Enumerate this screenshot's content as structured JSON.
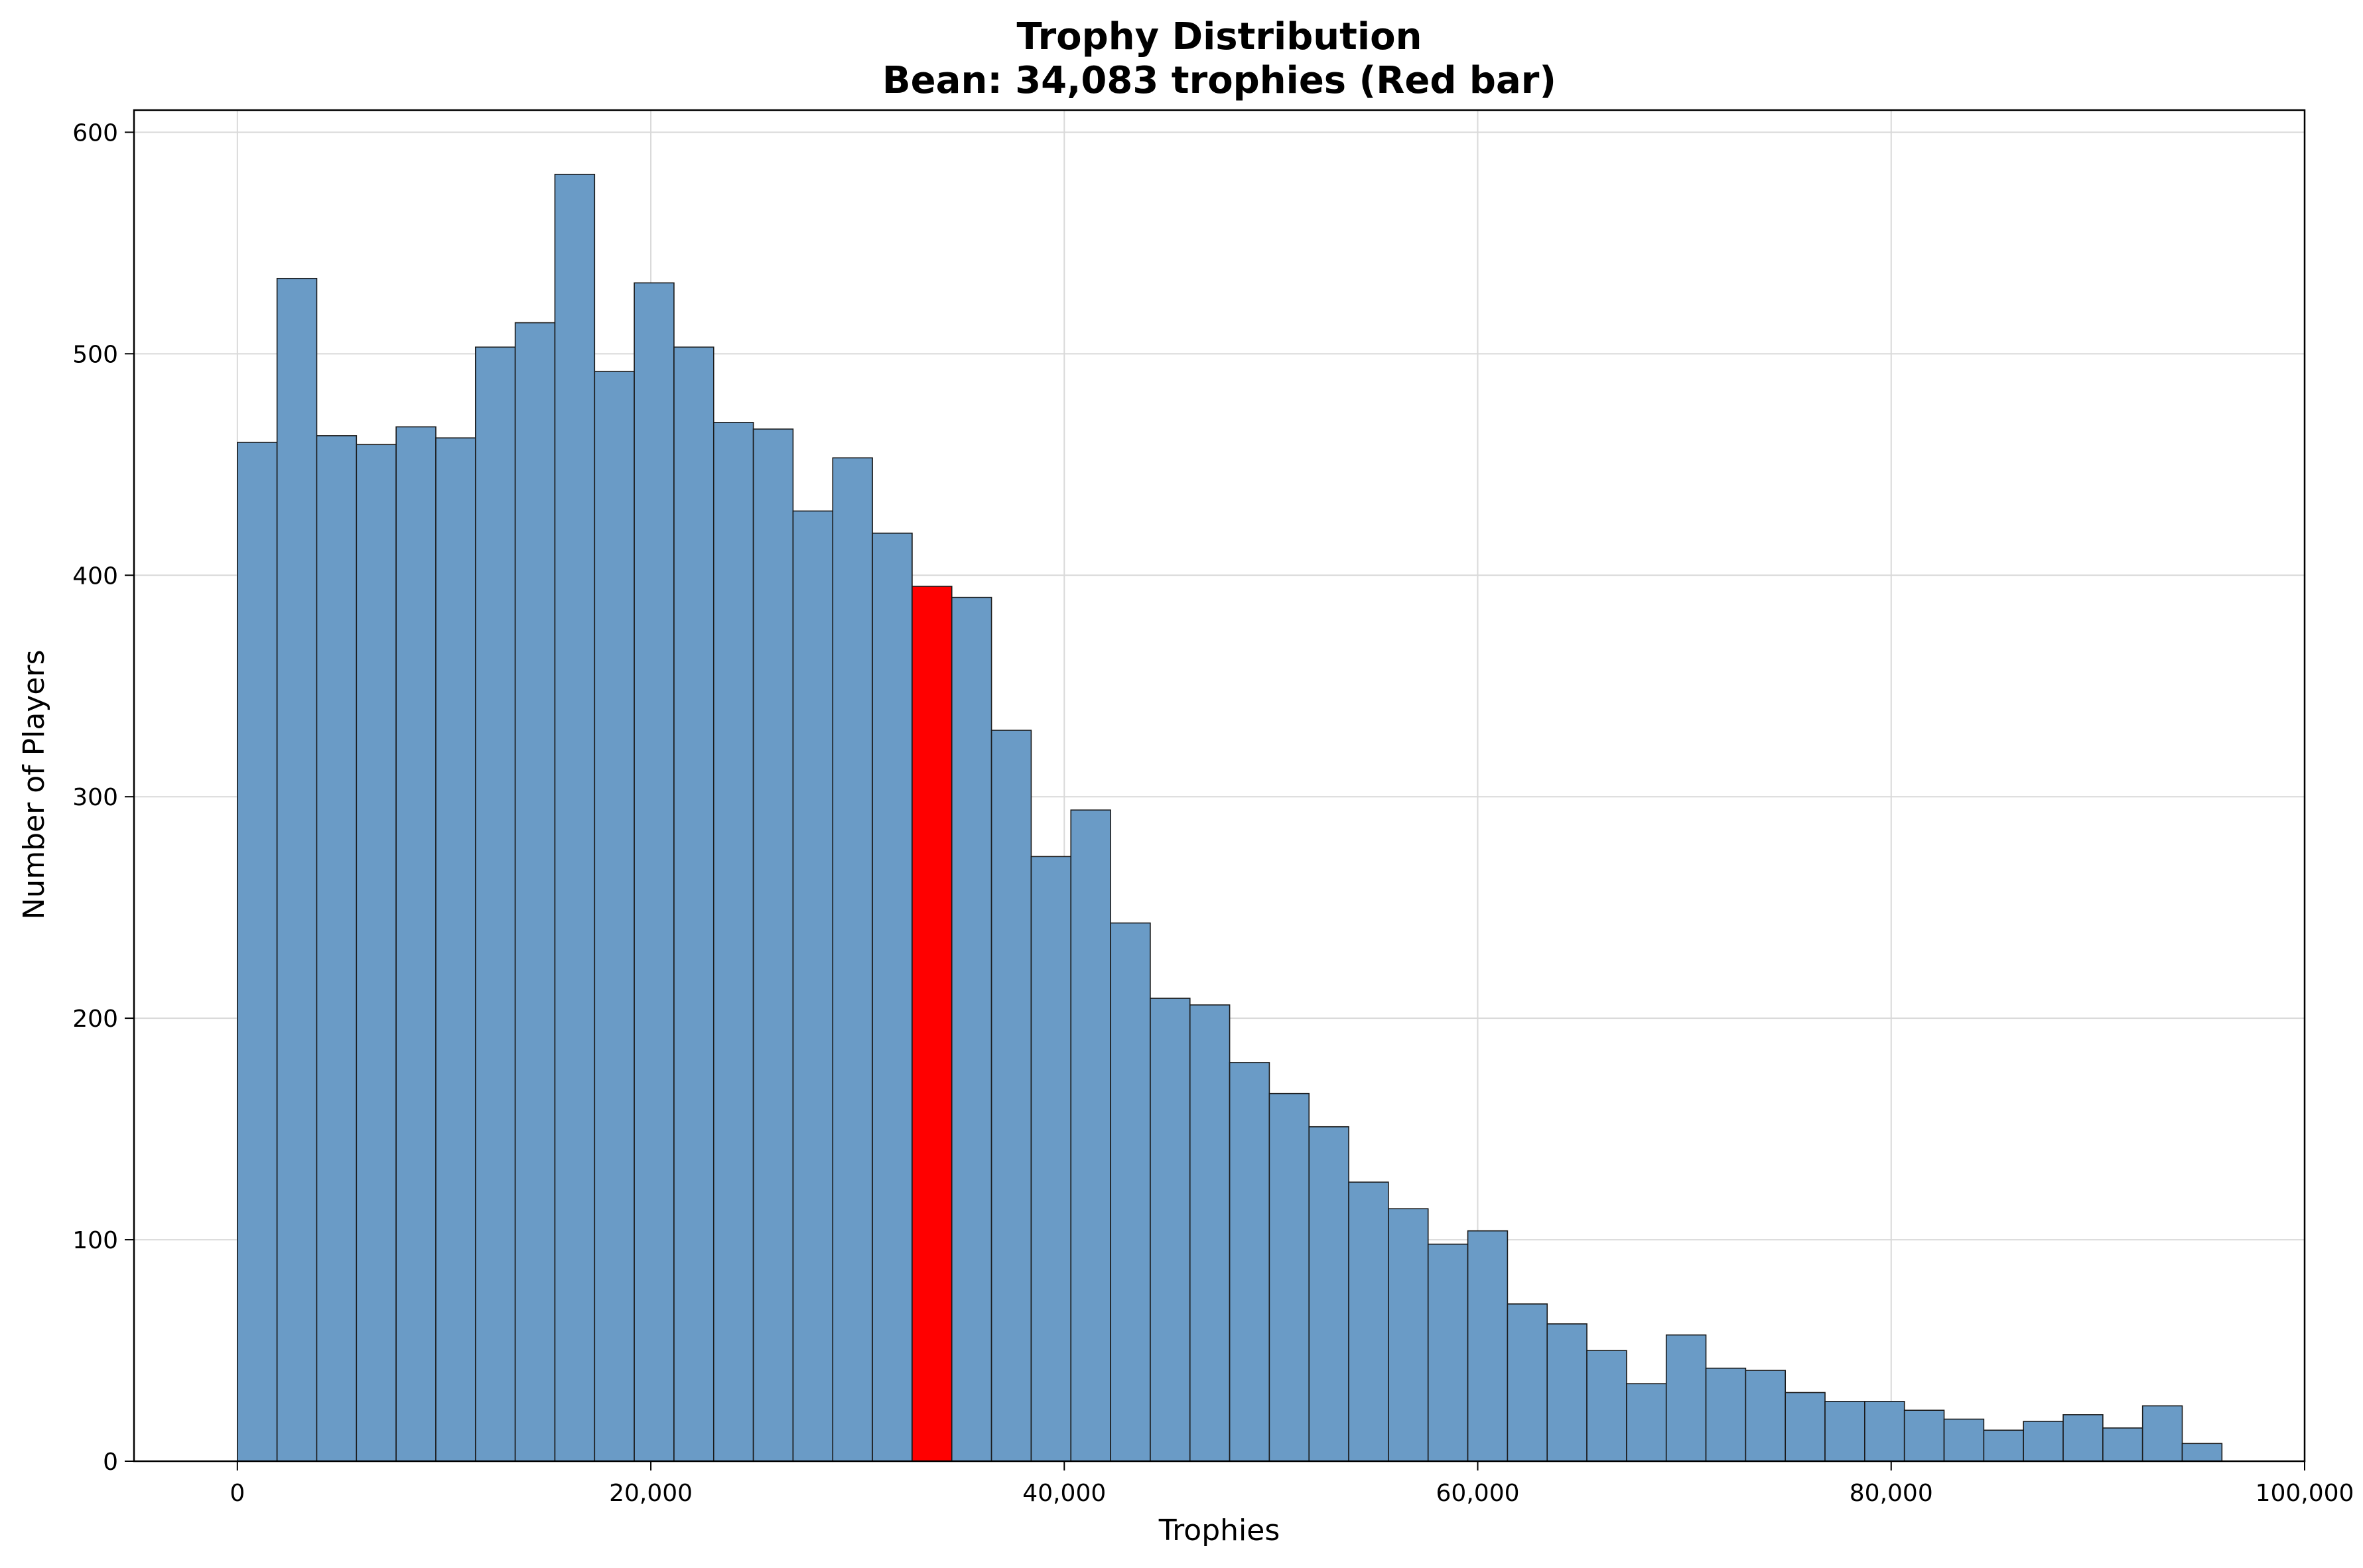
{
  "chart_data": {
    "type": "bar",
    "title": "Trophy Distribution",
    "subtitle": "Bean: 34,083 trophies (Red bar)",
    "xlabel": "Trophies",
    "ylabel": "Number of Players",
    "xlim": [
      -5000,
      100000
    ],
    "ylim": [
      0,
      610
    ],
    "xticks": [
      0,
      20000,
      40000,
      60000,
      80000,
      100000
    ],
    "xtick_labels": [
      "0",
      "20,000",
      "40,000",
      "60,000",
      "80,000",
      "100,000"
    ],
    "yticks": [
      0,
      100,
      200,
      300,
      400,
      500,
      600
    ],
    "ytick_labels": [
      "0",
      "100",
      "200",
      "300",
      "400",
      "500",
      "600"
    ],
    "grid": true,
    "bin_start": 0,
    "bin_width": 1920,
    "values": [
      460,
      534,
      463,
      459,
      467,
      462,
      503,
      514,
      581,
      492,
      532,
      503,
      469,
      466,
      429,
      453,
      419,
      395,
      390,
      330,
      273,
      294,
      243,
      209,
      206,
      180,
      166,
      151,
      126,
      114,
      98,
      104,
      71,
      62,
      50,
      35,
      57,
      42,
      41,
      31,
      27,
      27,
      23,
      19,
      14,
      18,
      21,
      15,
      25,
      8
    ],
    "highlight_index": 17,
    "highlight_value": 34083,
    "colors": {
      "bar": "#6a9bc6",
      "highlight": "#ff0000",
      "edge": "#1a1a1a"
    }
  }
}
